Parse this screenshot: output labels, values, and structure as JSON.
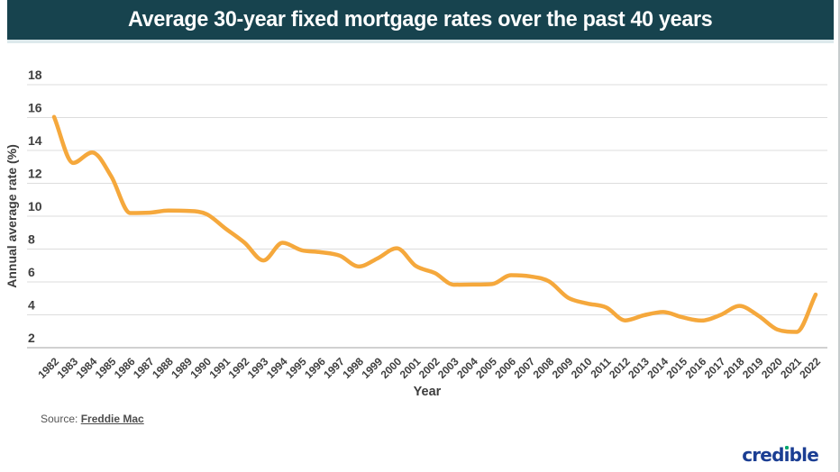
{
  "header": {
    "title": "Average 30-year fixed mortgage rates over the past 40 years",
    "background_color": "#17434e"
  },
  "chart_data": {
    "type": "line",
    "title": "Average 30-year fixed mortgage rates over the past 40 years",
    "xlabel": "Year",
    "ylabel": "Annual average rate (%)",
    "ylim": [
      2,
      18
    ],
    "ytick_step": 2,
    "yticks": [
      2,
      4,
      6,
      8,
      10,
      12,
      14,
      16,
      18
    ],
    "grid": true,
    "legend": "none",
    "line_color": "#f5a83c",
    "x": [
      1982,
      1983,
      1984,
      1985,
      1986,
      1987,
      1988,
      1989,
      1990,
      1991,
      1992,
      1993,
      1994,
      1995,
      1996,
      1997,
      1998,
      1999,
      2000,
      2001,
      2002,
      2003,
      2004,
      2005,
      2006,
      2007,
      2008,
      2009,
      2010,
      2011,
      2012,
      2013,
      2014,
      2015,
      2016,
      2017,
      2018,
      2019,
      2020,
      2021,
      2022
    ],
    "series": [
      {
        "name": "Average 30-year fixed mortgage rate",
        "values": [
          16.04,
          13.24,
          13.88,
          12.43,
          10.19,
          10.21,
          10.34,
          10.32,
          10.13,
          9.25,
          8.39,
          7.31,
          8.38,
          7.93,
          7.81,
          7.6,
          6.94,
          7.44,
          8.05,
          6.97,
          6.54,
          5.83,
          5.84,
          5.87,
          6.41,
          6.34,
          6.03,
          5.04,
          4.69,
          4.45,
          3.66,
          3.98,
          4.17,
          3.85,
          3.65,
          3.99,
          4.54,
          3.94,
          3.1,
          2.96,
          5.23
        ]
      }
    ]
  },
  "source": {
    "prefix": "Source:",
    "link_text": "Freddie Mac"
  },
  "branding": {
    "logo_text": "credible",
    "logo_color": "#1b3e93",
    "dot_color": "#00a76d"
  }
}
